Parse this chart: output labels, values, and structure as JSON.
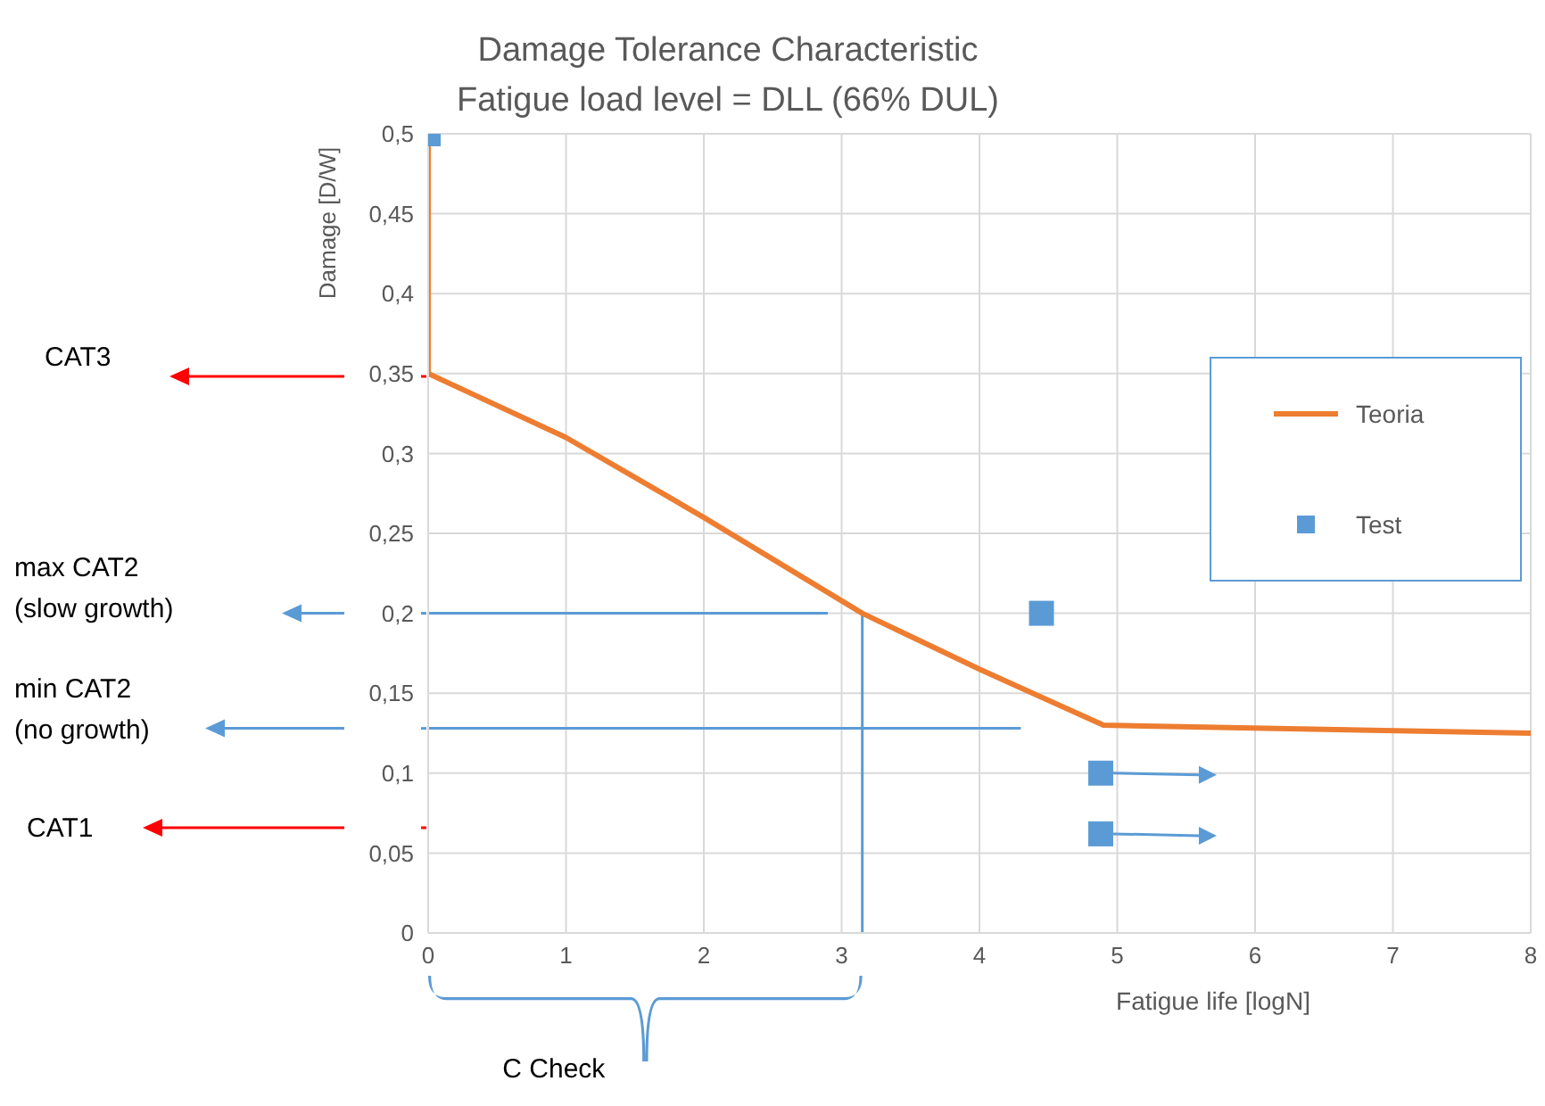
{
  "chart_data": {
    "type": "line",
    "title": "Damage Tolerance Characteristic",
    "subtitle": "Fatigue load level = DLL (66% DUL)",
    "xlabel": "Fatigue life [logN]",
    "ylabel": "Damage [D/W]",
    "xlim": [
      0,
      8
    ],
    "xticks": [
      0,
      1,
      2,
      3,
      4,
      5,
      6,
      7,
      8
    ],
    "ylim": [
      0,
      0.5
    ],
    "yticks": [
      0,
      {
        "value": 0.05,
        "label": "0,05"
      },
      {
        "value": 0.1,
        "label": "0,1"
      },
      {
        "value": 0.15,
        "label": "0,15"
      },
      {
        "value": 0.2,
        "label": "0,2"
      },
      {
        "value": 0.25,
        "label": "0,25"
      },
      {
        "value": 0.3,
        "label": "0,3"
      },
      {
        "value": 0.35,
        "label": "0,35"
      },
      {
        "value": 0.4,
        "label": "0,4"
      },
      {
        "value": 0.45,
        "label": "0,45"
      },
      {
        "value": 0.5,
        "label": "0,5"
      }
    ],
    "series": [
      {
        "name": "Teoria",
        "color": "#ed7d31",
        "marker": "none",
        "line_style": "solid",
        "x": [
          0,
          0,
          1,
          2,
          3.15,
          4,
          4.9,
          8
        ],
        "values": [
          0.5,
          0.35,
          0.31,
          0.26,
          0.2,
          0.165,
          0.13,
          0.125
        ]
      },
      {
        "name": "Test",
        "type": "scatter",
        "color": "#5b9bd5",
        "marker": "square",
        "x": [
          0,
          4.45,
          4.88,
          4.88
        ],
        "values": [
          0.5,
          0.2,
          0.1,
          0.062
        ]
      }
    ],
    "ref_lines": [
      {
        "axis": "y",
        "value": 0.2,
        "color": "#5b9bd5"
      },
      {
        "axis": "y",
        "value": 0.128,
        "color": "#5b9bd5"
      },
      {
        "axis": "x",
        "value": 3.15,
        "color": "#5b9bd5"
      }
    ],
    "annotations": [
      "CAT3",
      "max CAT2\n(slow growth)",
      "min CAT2\n(no growth)",
      "CAT1",
      "C Check"
    ],
    "grid": true,
    "legend": "right"
  }
}
